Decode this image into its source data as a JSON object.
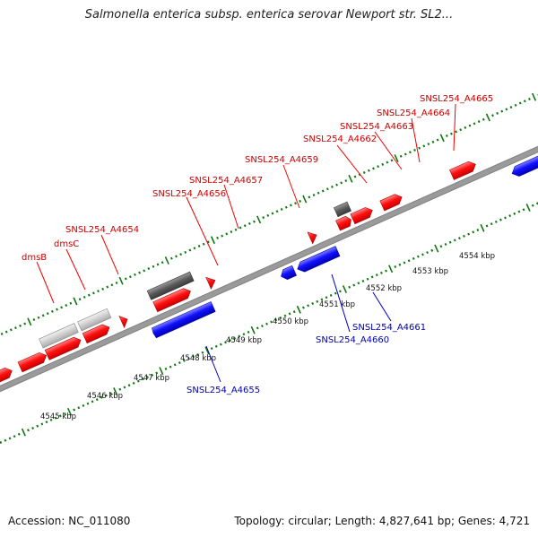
{
  "title": "Salmonella enterica subsp. enterica serovar Newport str. SL2...",
  "footer": {
    "accession": "Accession: NC_011080",
    "summary": "Topology: circular; Length: 4,827,641 bp; Genes: 4,721"
  },
  "colors": {
    "forward_cds": "#ff0000",
    "reverse_cds": "#0000ff",
    "rna_dark": "#555555",
    "rna_light": "#cccccc",
    "backbone": "#999999",
    "tick": "#117711",
    "label_forward": "#cc0000",
    "label_reverse": "#0000aa"
  },
  "ruler": {
    "labels": [
      "4545 kbp",
      "4546 kbp",
      "4547 kbp",
      "4548 kbp",
      "4549 kbp",
      "4550 kbp",
      "4551 kbp",
      "4552 kbp",
      "4553 kbp",
      "4554 kbp"
    ]
  },
  "forward_labels": [
    "dmsB",
    "dmsC",
    "SNSL254_A4654",
    "SNSL254_A4656",
    "SNSL254_A4657",
    "SNSL254_A4659",
    "SNSL254_A4662",
    "SNSL254_A4663",
    "SNSL254_A4664",
    "SNSL254_A4665"
  ],
  "reverse_labels": [
    "SNSL254_A4655",
    "SNSL254_A4660",
    "SNSL254_A4661"
  ]
}
